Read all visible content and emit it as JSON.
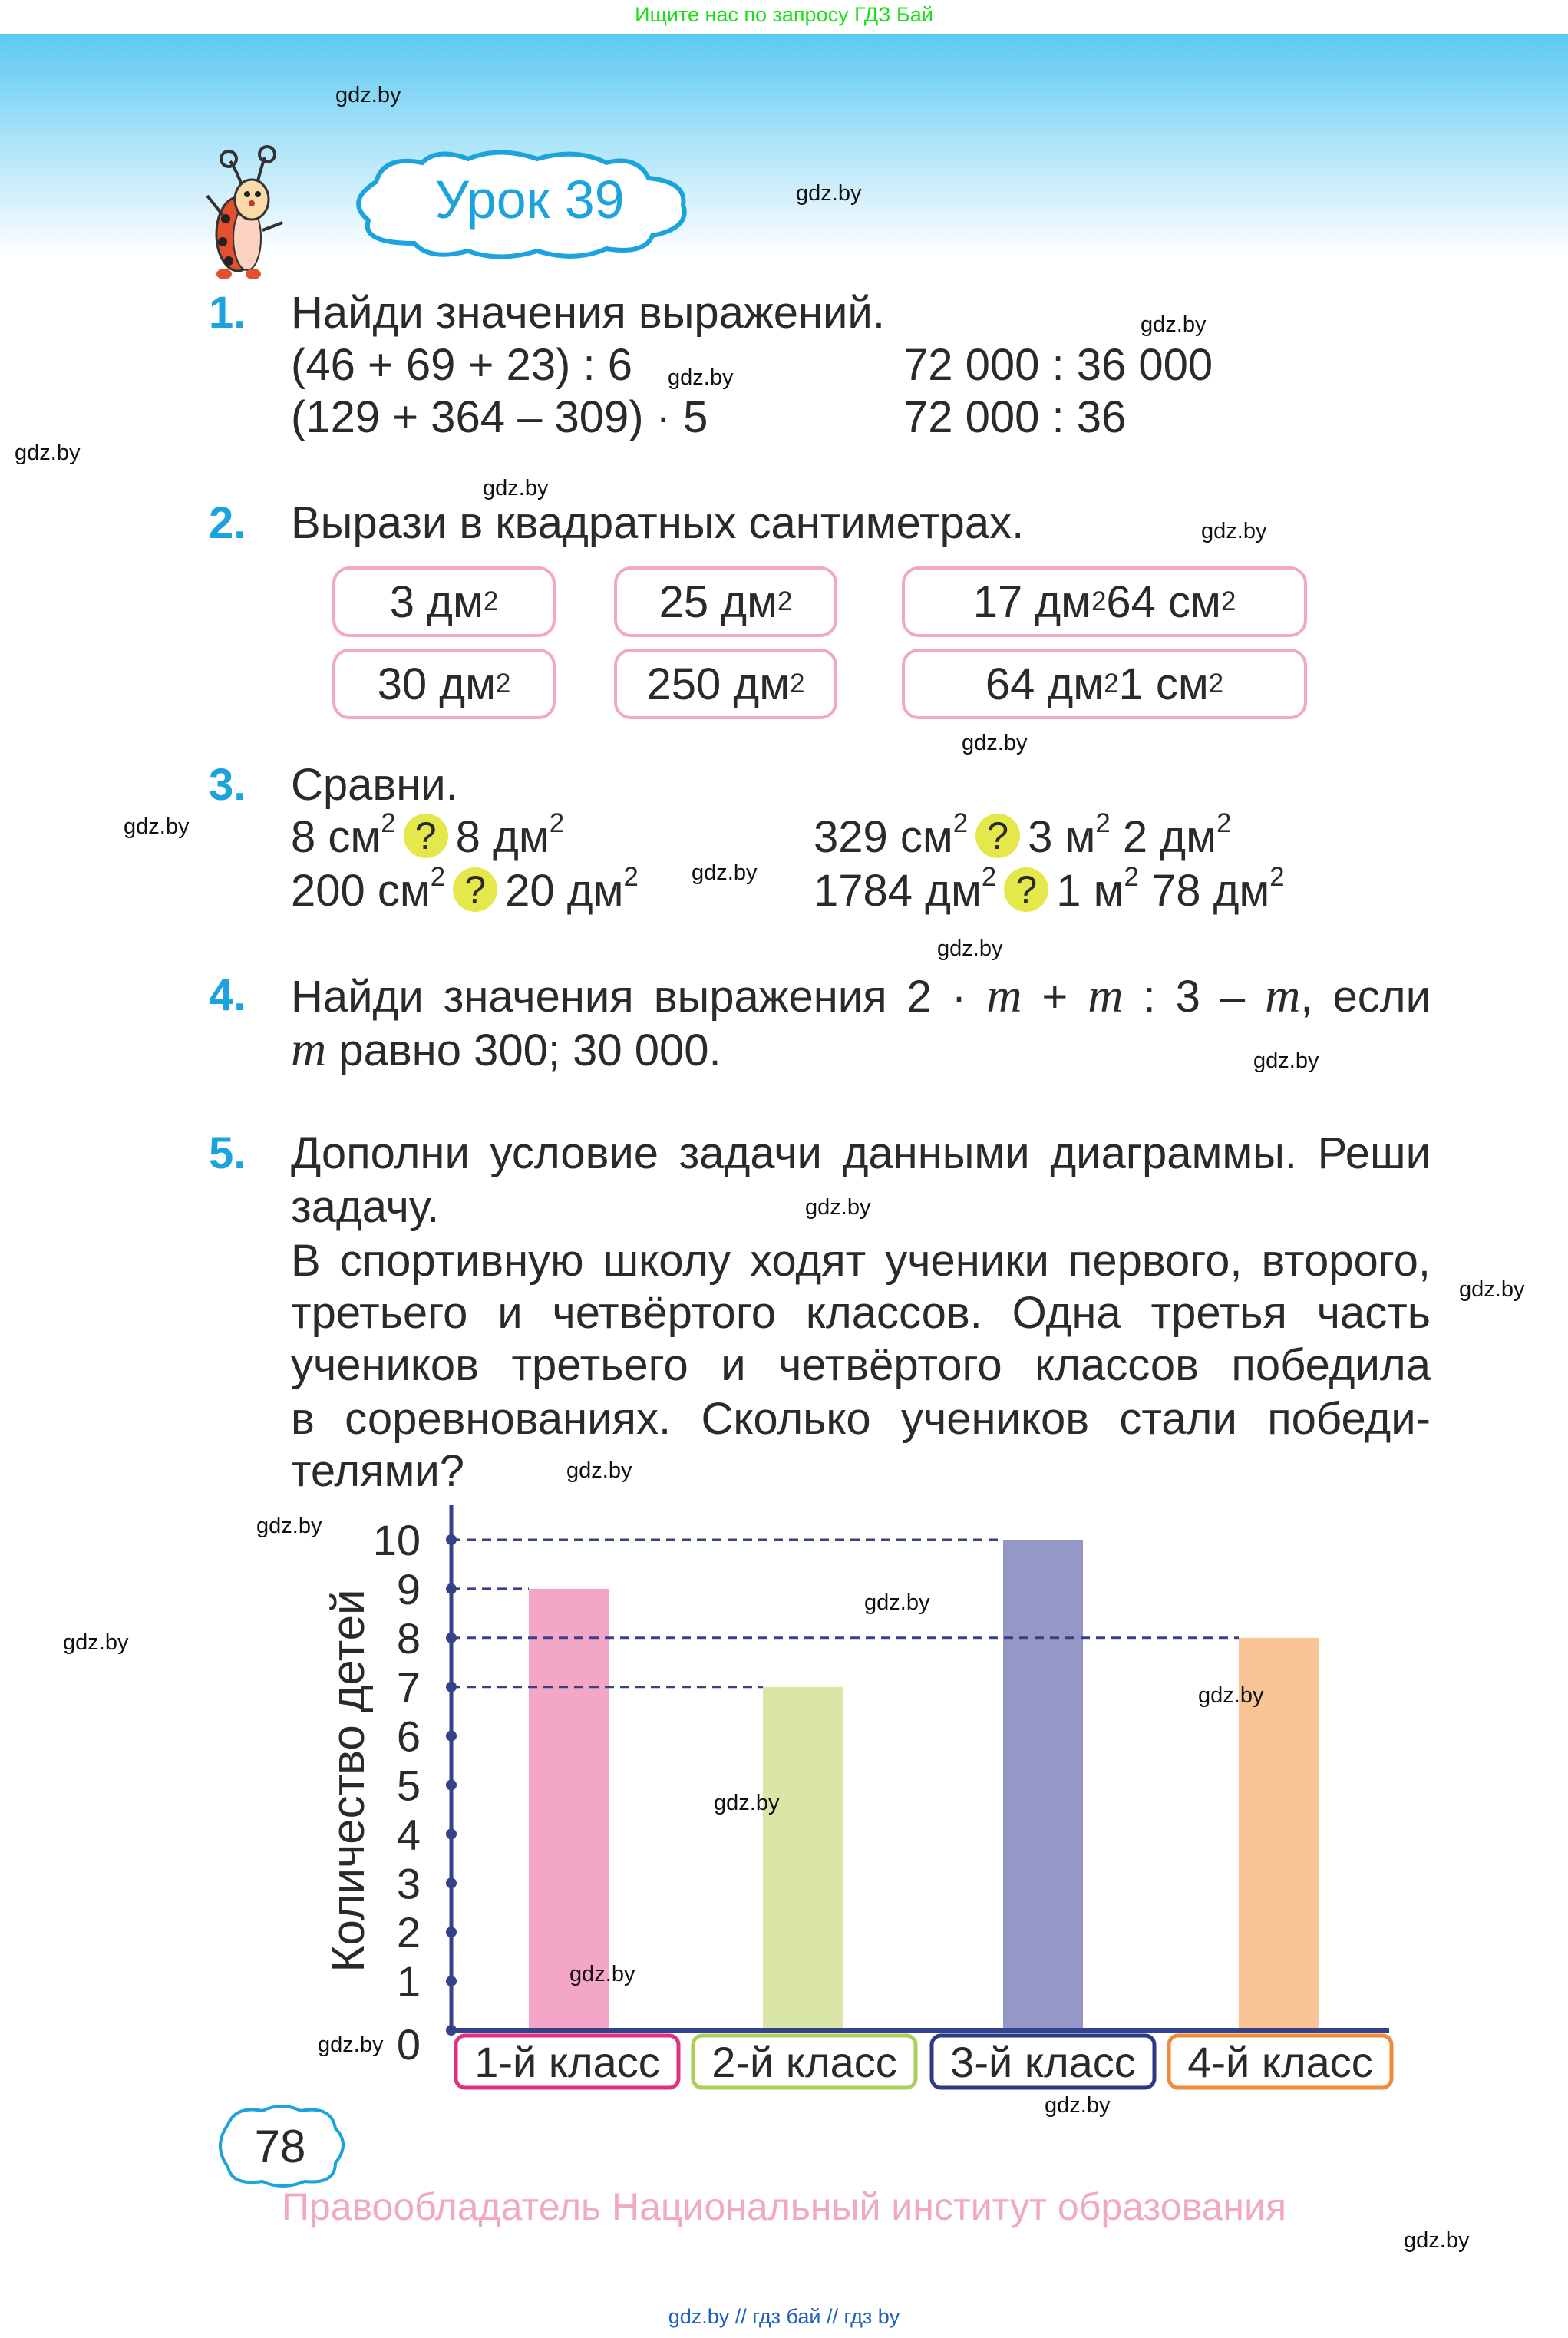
{
  "top_note": "Ищите нас по запросу ГДЗ Бай",
  "lesson_title": "Урок 39",
  "watermark": "gdz.by",
  "task1": {
    "number": "1.",
    "title": "Найди значения выражений.",
    "expressions": [
      "(46 + 69 + 23) : 6",
      "(129 + 364 – 309) · 5",
      "72 000 : 36 000",
      "72 000 : 36"
    ]
  },
  "task2": {
    "number": "2.",
    "title": "Вырази в квадратных сантиметрах.",
    "boxes": [
      "3 дм²",
      "25 дм²",
      "17 дм² 64 см²",
      "30 дм²",
      "250 дм²",
      "64 дм² 1 см²"
    ]
  },
  "task3": {
    "number": "3.",
    "title": "Сравни.",
    "mark": "?",
    "rows": [
      {
        "left": "8 см²",
        "right": "8 дм²"
      },
      {
        "left": "200 см²",
        "right": "20 дм²"
      },
      {
        "left": "329 см²",
        "right": "3 м² 2 дм²"
      },
      {
        "left": "1784 дм²",
        "right": "1 м² 78 дм²"
      }
    ]
  },
  "task4": {
    "number": "4.",
    "line1_a": "Найди значения выражения 2 · ",
    "var": "m",
    "line1_b": " + ",
    "line1_c": " : 3 – ",
    "line1_d": ", если",
    "line2": " равно 300; 30 000."
  },
  "task5": {
    "number": "5.",
    "lines": [
      "Дополни условие задачи данными диаграммы. Реши",
      "задачу.",
      "В спортивную школу ходят ученики первого, второго,",
      "третьего и четвёртого классов. Одна третья часть",
      "учеников третьего и четвёртого классов победила",
      "в соревнованиях. Сколько учеников стали победи-",
      "телями?"
    ]
  },
  "chart_data": {
    "type": "bar",
    "ylabel": "Количество детей",
    "categories": [
      "1-й класс",
      "2-й класс",
      "3-й класс",
      "4-й класс"
    ],
    "values": [
      9,
      7,
      10,
      8
    ],
    "ylim": [
      0,
      10
    ],
    "yticks": [
      0,
      1,
      2,
      3,
      4,
      5,
      6,
      7,
      8,
      9,
      10
    ],
    "colors": [
      "#f4a6c6",
      "#d9e6a8",
      "#9597c6",
      "#f9c596"
    ],
    "label_border_colors": [
      "#e0307e",
      "#a8d05a",
      "#2e3a80",
      "#ef8a3a"
    ],
    "axis_color": "#34428a"
  },
  "page_number": "78",
  "copyright": "Правообладатель Национальный институт образования",
  "footer": "gdz.by  //  гдз бай  //  гдз by"
}
